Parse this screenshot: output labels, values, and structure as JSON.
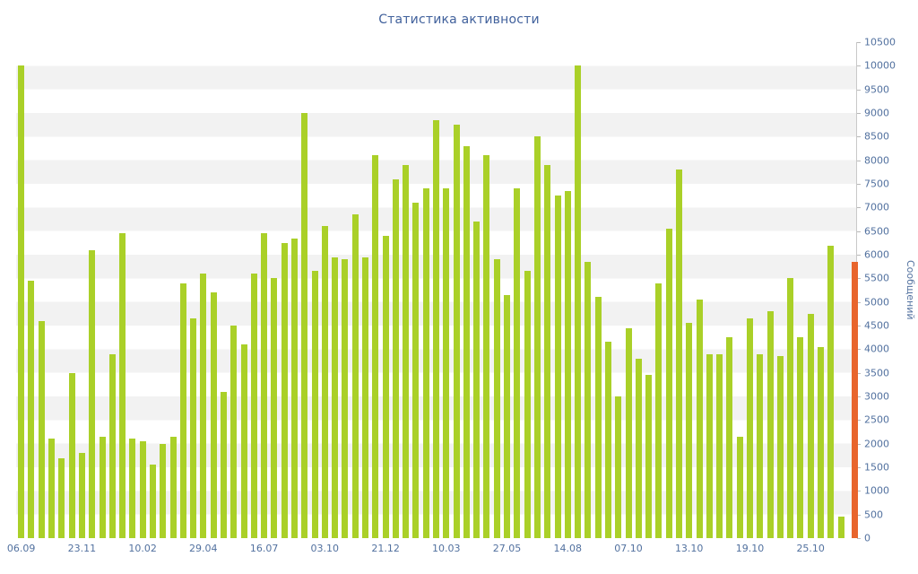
{
  "chart_data": {
    "type": "bar",
    "title": "Статистика активности",
    "ylabel": "Сообщений",
    "xlabel": "",
    "ylim": [
      0,
      10500
    ],
    "y_tick_step": 500,
    "grid": "striped-horizontal-bands",
    "legend": "none",
    "bar_color": "#aad028",
    "highlight_color": "#e8652d",
    "stripe_color": "#f2f2f2",
    "axis_color": "#c9c9c9",
    "text_color": "#52719f",
    "title_color": "#41619c",
    "x_tick_labels": [
      "06.09",
      "23.11",
      "10.02",
      "29.04",
      "16.07",
      "03.10",
      "21.12",
      "10.03",
      "27.05",
      "14.08",
      "07.10",
      "13.10",
      "19.10",
      "25.10"
    ],
    "x_tick_indices": [
      0,
      6,
      12,
      18,
      24,
      30,
      36,
      42,
      48,
      54,
      60,
      66,
      72,
      78
    ],
    "values": [
      10000,
      5450,
      4600,
      2100,
      1700,
      3500,
      1800,
      6100,
      2150,
      3900,
      6450,
      2100,
      2050,
      1550,
      2000,
      2150,
      5400,
      4650,
      5600,
      5200,
      3100,
      4500,
      4100,
      5600,
      6450,
      5500,
      6250,
      6350,
      9000,
      5650,
      6600,
      5950,
      5900,
      6850,
      5950,
      8100,
      6400,
      7600,
      7900,
      7100,
      7400,
      8850,
      7400,
      8750,
      8300,
      6700,
      8100,
      5900,
      5150,
      7400,
      5650,
      8500,
      7900,
      7250,
      7350,
      10000,
      5850,
      5100,
      4150,
      3000,
      4450,
      3800,
      3450,
      5400,
      6550,
      7800,
      4550,
      5050,
      3900,
      3900,
      4250,
      2150,
      4650,
      3900,
      4800,
      3850,
      5500,
      4250,
      4750,
      4050,
      6200,
      450,
      0
    ],
    "overlay_bar": {
      "index": 82,
      "value": 5850,
      "color": "#e8652d"
    }
  }
}
